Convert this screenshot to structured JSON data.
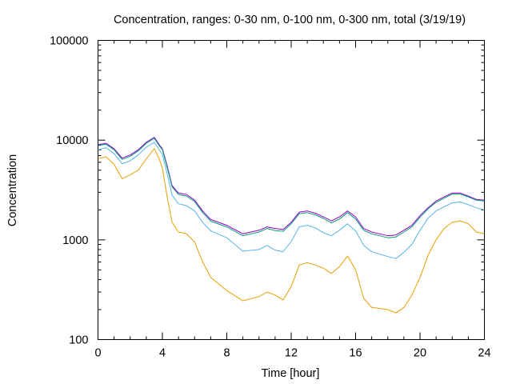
{
  "chart_data": {
    "type": "line",
    "title": "Concentration, ranges: 0-30 nm, 0-100 nm, 0-300 nm, total (3/19/19)",
    "xlabel": "Time [hour]",
    "ylabel": "Concentration",
    "xlim": [
      0,
      24
    ],
    "ylim": [
      100,
      100000
    ],
    "yscale": "log",
    "grid": false,
    "legend": "none",
    "x_ticks": [
      "0",
      "4",
      "8",
      "12",
      "16",
      "20",
      "24"
    ],
    "y_ticks": [
      "100",
      "1000",
      "10000",
      "100000"
    ],
    "x": [
      0,
      0.5,
      1,
      1.5,
      2,
      2.5,
      3,
      3.5,
      3.8,
      4,
      4.3,
      4.6,
      5,
      5.5,
      6,
      6.5,
      7,
      8,
      9,
      10,
      10.5,
      11,
      11.5,
      12,
      12.5,
      13,
      13.5,
      14,
      14.5,
      15,
      15.5,
      16,
      16.5,
      17,
      18,
      18.5,
      19,
      19.5,
      20,
      20.5,
      21,
      21.5,
      22,
      22.5,
      23,
      23.5,
      24
    ],
    "series": [
      {
        "color": "#9400d3",
        "values": [
          9000,
          9300,
          8200,
          6600,
          7100,
          8000,
          9500,
          10700,
          9000,
          8200,
          5500,
          3500,
          2950,
          2850,
          2500,
          1950,
          1600,
          1400,
          1150,
          1250,
          1350,
          1300,
          1270,
          1500,
          1900,
          1950,
          1850,
          1700,
          1550,
          1700,
          1950,
          1700,
          1300,
          1200,
          1100,
          1120,
          1250,
          1400,
          1750,
          2100,
          2450,
          2700,
          2950,
          2950,
          2750,
          2550,
          2500
        ]
      },
      {
        "color": "#009e73",
        "values": [
          8800,
          9100,
          8000,
          6400,
          6900,
          7800,
          9300,
          10400,
          8800,
          8000,
          5300,
          3400,
          2850,
          2750,
          2420,
          1880,
          1540,
          1350,
          1100,
          1200,
          1300,
          1240,
          1220,
          1450,
          1830,
          1880,
          1780,
          1640,
          1480,
          1620,
          1880,
          1620,
          1250,
          1150,
          1050,
          1070,
          1200,
          1350,
          1680,
          2050,
          2380,
          2620,
          2880,
          2880,
          2700,
          2500,
          2450
        ]
      },
      {
        "color": "#56b4e9",
        "values": [
          8000,
          8400,
          7300,
          5800,
          6200,
          7100,
          8500,
          9500,
          8000,
          7200,
          4600,
          2800,
          2300,
          2200,
          1950,
          1500,
          1230,
          1050,
          770,
          800,
          880,
          790,
          760,
          960,
          1350,
          1400,
          1320,
          1180,
          1100,
          1250,
          1450,
          1230,
          880,
          760,
          680,
          650,
          750,
          900,
          1250,
          1650,
          1950,
          2150,
          2350,
          2400,
          2250,
          2100,
          2000
        ]
      },
      {
        "color": "#e69f00",
        "values": [
          6500,
          6800,
          5700,
          4100,
          4500,
          5000,
          6500,
          8200,
          6500,
          5200,
          2700,
          1500,
          1200,
          1150,
          950,
          600,
          420,
          310,
          245,
          270,
          300,
          280,
          250,
          340,
          560,
          590,
          560,
          520,
          460,
          540,
          690,
          500,
          260,
          210,
          200,
          185,
          210,
          280,
          420,
          700,
          1000,
          1300,
          1500,
          1550,
          1450,
          1200,
          1150
        ]
      }
    ]
  }
}
